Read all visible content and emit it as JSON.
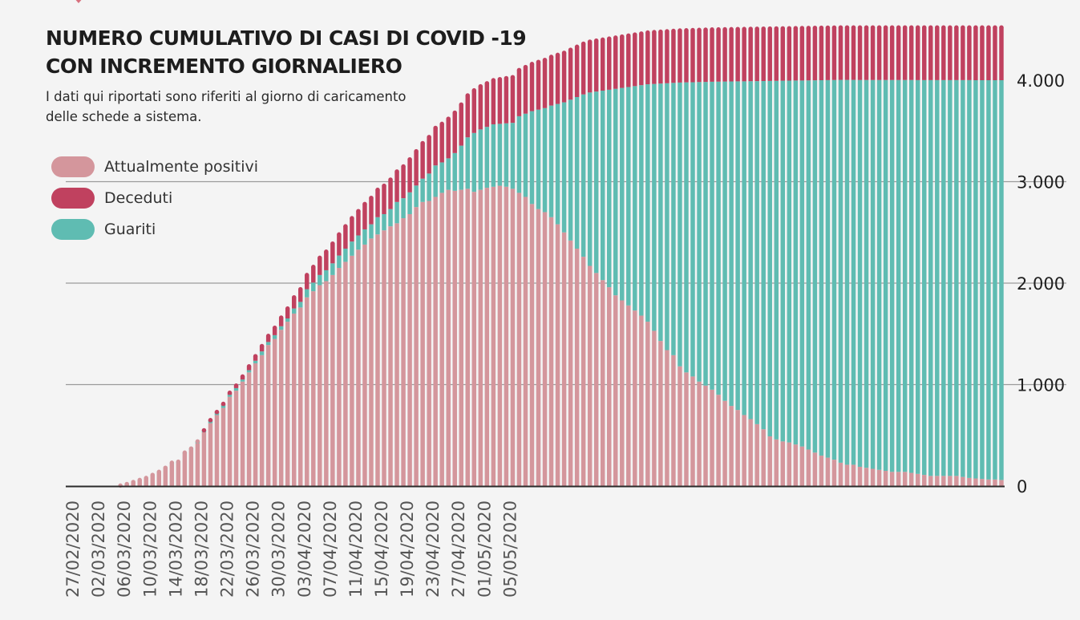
{
  "chart_data": {
    "type": "bar",
    "stacked": true,
    "title": [
      "NUMERO CUMULATIVO DI CASI DI COVID -19",
      "CON INCREMENTO GIORNALIERO"
    ],
    "subtitle": [
      "I dati qui riportati sono riferiti al giorno di caricamento",
      "delle schede a sistema."
    ],
    "ylim": [
      0,
      4500
    ],
    "y_ticks": [
      {
        "value": 0,
        "label": "0"
      },
      {
        "value": 1000,
        "label": "1.000"
      },
      {
        "value": 2000,
        "label": "2.000"
      },
      {
        "value": 3000,
        "label": "3.000"
      },
      {
        "value": 4000,
        "label": "4.000"
      }
    ],
    "x_start": "27/02/2020",
    "x_tick_labels": [
      "27/02/2020",
      "02/03/2020",
      "06/03/2020",
      "10/03/2020",
      "14/03/2020",
      "18/03/2020",
      "22/03/2020",
      "26/03/2020",
      "30/03/2020",
      "03/04/2020",
      "07/04/2020",
      "11/04/2020",
      "15/04/2020",
      "19/04/2020",
      "23/04/2020",
      "27/04/2020",
      "01/05/2020",
      "05/05/2020"
    ],
    "legend": [
      {
        "name": "Attualmente positivi",
        "color": "#d4969c"
      },
      {
        "name": "Deceduti",
        "color": "#c0415f"
      },
      {
        "name": "Guariti",
        "color": "#5fbcb2"
      }
    ],
    "total_anchors": [
      [
        0,
        0
      ],
      [
        1,
        0
      ],
      [
        2,
        0
      ],
      [
        3,
        0
      ],
      [
        4,
        0
      ],
      [
        5,
        0
      ],
      [
        6,
        0
      ],
      [
        7,
        0
      ],
      [
        8,
        5
      ],
      [
        9,
        20
      ],
      [
        10,
        40
      ],
      [
        11,
        60
      ],
      [
        12,
        80
      ],
      [
        13,
        110
      ],
      [
        14,
        140
      ],
      [
        15,
        180
      ],
      [
        16,
        230
      ],
      [
        17,
        240
      ],
      [
        18,
        330
      ],
      [
        19,
        370
      ],
      [
        20,
        440
      ],
      [
        21,
        550
      ],
      [
        22,
        650
      ],
      [
        23,
        730
      ],
      [
        24,
        810
      ],
      [
        25,
        920
      ],
      [
        26,
        990
      ],
      [
        27,
        1080
      ],
      [
        28,
        1180
      ],
      [
        29,
        1280
      ],
      [
        30,
        1380
      ],
      [
        31,
        1480
      ],
      [
        32,
        1560
      ],
      [
        33,
        1660
      ],
      [
        34,
        1750
      ],
      [
        35,
        1860
      ],
      [
        36,
        1940
      ],
      [
        37,
        2080
      ],
      [
        38,
        2160
      ],
      [
        39,
        2250
      ],
      [
        40,
        2310
      ],
      [
        41,
        2390
      ],
      [
        42,
        2480
      ],
      [
        43,
        2560
      ],
      [
        44,
        2640
      ],
      [
        45,
        2710
      ],
      [
        46,
        2780
      ],
      [
        47,
        2840
      ],
      [
        48,
        2920
      ],
      [
        49,
        2960
      ],
      [
        50,
        3020
      ],
      [
        51,
        3100
      ],
      [
        52,
        3150
      ],
      [
        53,
        3220
      ],
      [
        54,
        3300
      ],
      [
        55,
        3380
      ],
      [
        56,
        3440
      ],
      [
        57,
        3530
      ],
      [
        58,
        3570
      ],
      [
        59,
        3620
      ],
      [
        60,
        3680
      ],
      [
        61,
        3760
      ],
      [
        62,
        3850
      ],
      [
        63,
        3900
      ],
      [
        64,
        3940
      ],
      [
        65,
        3970
      ],
      [
        66,
        4000
      ],
      [
        67,
        4010
      ],
      [
        68,
        4020
      ],
      [
        69,
        4030
      ],
      [
        70,
        4100
      ],
      [
        71,
        4130
      ],
      [
        72,
        4160
      ],
      [
        73,
        4180
      ],
      [
        74,
        4200
      ],
      [
        75,
        4230
      ],
      [
        76,
        4250
      ],
      [
        77,
        4270
      ],
      [
        78,
        4300
      ],
      [
        79,
        4330
      ],
      [
        80,
        4360
      ],
      [
        81,
        4380
      ],
      [
        82,
        4390
      ],
      [
        83,
        4400
      ],
      [
        84,
        4410
      ],
      [
        85,
        4420
      ],
      [
        86,
        4430
      ],
      [
        87,
        4440
      ],
      [
        88,
        4450
      ],
      [
        89,
        4460
      ],
      [
        90,
        4470
      ],
      [
        95,
        4490
      ],
      [
        100,
        4500
      ],
      [
        110,
        4510
      ],
      [
        120,
        4520
      ],
      [
        130,
        4520
      ],
      [
        140,
        4520
      ],
      [
        145,
        4520
      ]
    ],
    "deceduti_anchors": [
      [
        0,
        0
      ],
      [
        20,
        0
      ],
      [
        23,
        10
      ],
      [
        27,
        30
      ],
      [
        31,
        60
      ],
      [
        35,
        110
      ],
      [
        39,
        170
      ],
      [
        43,
        220
      ],
      [
        47,
        260
      ],
      [
        51,
        300
      ],
      [
        55,
        350
      ],
      [
        59,
        390
      ],
      [
        63,
        420
      ],
      [
        67,
        440
      ],
      [
        71,
        460
      ],
      [
        75,
        480
      ],
      [
        80,
        500
      ],
      [
        90,
        510
      ],
      [
        100,
        515
      ],
      [
        145,
        520
      ]
    ],
    "positivi_anchors": [
      [
        0,
        0
      ],
      [
        1,
        0
      ],
      [
        2,
        0
      ],
      [
        3,
        0
      ],
      [
        4,
        0
      ],
      [
        5,
        0
      ],
      [
        6,
        0
      ],
      [
        7,
        0
      ],
      [
        8,
        5
      ],
      [
        9,
        20
      ],
      [
        10,
        40
      ],
      [
        11,
        60
      ],
      [
        12,
        80
      ],
      [
        13,
        105
      ],
      [
        14,
        135
      ],
      [
        15,
        175
      ],
      [
        16,
        220
      ],
      [
        17,
        230
      ],
      [
        18,
        320
      ],
      [
        19,
        360
      ],
      [
        20,
        420
      ],
      [
        21,
        530
      ],
      [
        22,
        620
      ],
      [
        23,
        700
      ],
      [
        24,
        770
      ],
      [
        25,
        880
      ],
      [
        26,
        940
      ],
      [
        27,
        1030
      ],
      [
        28,
        1120
      ],
      [
        29,
        1210
      ],
      [
        30,
        1290
      ],
      [
        31,
        1390
      ],
      [
        32,
        1450
      ],
      [
        33,
        1540
      ],
      [
        34,
        1620
      ],
      [
        35,
        1700
      ],
      [
        36,
        1760
      ],
      [
        37,
        1860
      ],
      [
        38,
        1920
      ],
      [
        39,
        1980
      ],
      [
        40,
        2020
      ],
      [
        41,
        2080
      ],
      [
        42,
        2150
      ],
      [
        43,
        2210
      ],
      [
        44,
        2270
      ],
      [
        45,
        2330
      ],
      [
        46,
        2380
      ],
      [
        47,
        2440
      ],
      [
        48,
        2480
      ],
      [
        49,
        2520
      ],
      [
        50,
        2560
      ],
      [
        51,
        2590
      ],
      [
        52,
        2640
      ],
      [
        53,
        2680
      ],
      [
        54,
        2750
      ],
      [
        55,
        2800
      ],
      [
        56,
        2810
      ],
      [
        57,
        2850
      ],
      [
        58,
        2890
      ],
      [
        59,
        2920
      ],
      [
        60,
        2910
      ],
      [
        61,
        2920
      ],
      [
        62,
        2930
      ],
      [
        63,
        2900
      ],
      [
        64,
        2920
      ],
      [
        65,
        2940
      ],
      [
        66,
        2950
      ],
      [
        67,
        2960
      ],
      [
        68,
        2950
      ],
      [
        69,
        2930
      ],
      [
        70,
        2890
      ],
      [
        71,
        2850
      ],
      [
        72,
        2780
      ],
      [
        73,
        2730
      ],
      [
        74,
        2700
      ],
      [
        75,
        2650
      ],
      [
        76,
        2580
      ],
      [
        77,
        2500
      ],
      [
        78,
        2420
      ],
      [
        79,
        2340
      ],
      [
        80,
        2260
      ],
      [
        81,
        2170
      ],
      [
        82,
        2100
      ],
      [
        83,
        2030
      ],
      [
        84,
        1960
      ],
      [
        85,
        1880
      ],
      [
        86,
        1830
      ],
      [
        87,
        1780
      ],
      [
        88,
        1730
      ],
      [
        89,
        1680
      ],
      [
        90,
        1620
      ],
      [
        91,
        1530
      ],
      [
        92,
        1430
      ],
      [
        93,
        1340
      ],
      [
        94,
        1290
      ],
      [
        95,
        1180
      ],
      [
        96,
        1120
      ],
      [
        97,
        1080
      ],
      [
        98,
        1030
      ],
      [
        99,
        990
      ],
      [
        100,
        950
      ],
      [
        101,
        900
      ],
      [
        102,
        840
      ],
      [
        103,
        790
      ],
      [
        104,
        750
      ],
      [
        105,
        700
      ],
      [
        106,
        660
      ],
      [
        107,
        610
      ],
      [
        108,
        560
      ],
      [
        109,
        490
      ],
      [
        110,
        460
      ],
      [
        111,
        440
      ],
      [
        112,
        430
      ],
      [
        113,
        410
      ],
      [
        114,
        390
      ],
      [
        115,
        360
      ],
      [
        116,
        330
      ],
      [
        117,
        300
      ],
      [
        118,
        280
      ],
      [
        119,
        260
      ],
      [
        120,
        230
      ],
      [
        121,
        210
      ],
      [
        122,
        210
      ],
      [
        123,
        190
      ],
      [
        124,
        180
      ],
      [
        125,
        170
      ],
      [
        126,
        160
      ],
      [
        127,
        150
      ],
      [
        128,
        140
      ],
      [
        129,
        140
      ],
      [
        130,
        140
      ],
      [
        131,
        130
      ],
      [
        132,
        120
      ],
      [
        133,
        110
      ],
      [
        134,
        100
      ],
      [
        135,
        100
      ],
      [
        136,
        100
      ],
      [
        137,
        100
      ],
      [
        138,
        100
      ],
      [
        139,
        90
      ],
      [
        140,
        80
      ],
      [
        141,
        75
      ],
      [
        142,
        70
      ],
      [
        143,
        65
      ],
      [
        144,
        65
      ],
      [
        145,
        60
      ]
    ]
  }
}
